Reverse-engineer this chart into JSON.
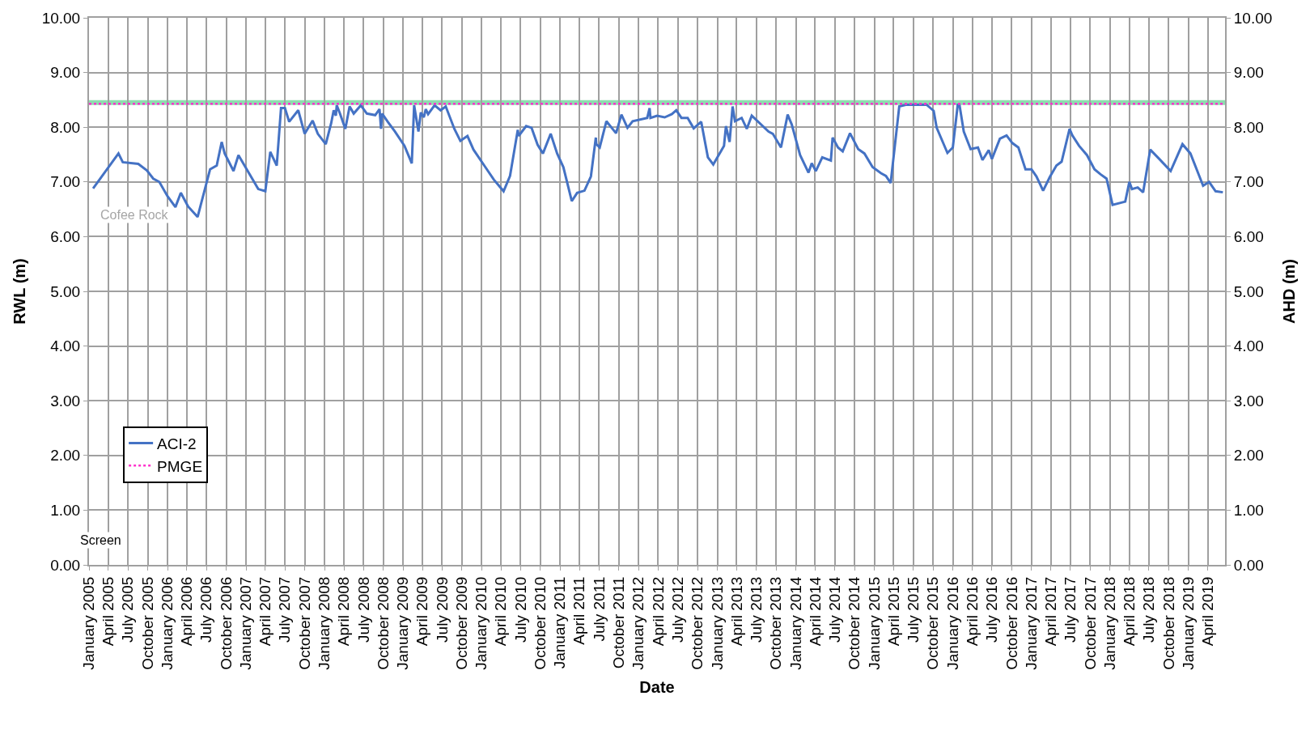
{
  "chart_data": {
    "type": "line",
    "xlabel": "Date",
    "ylabel": "RWL (m)",
    "y2label": "AHD (m)",
    "xlim": [
      "2005-01-01",
      "2019-06-20"
    ],
    "xticks": [
      {
        "value": "2005-01-01",
        "label": "January 2005"
      },
      {
        "value": "2005-04-01",
        "label": "April 2005"
      },
      {
        "value": "2005-07-01",
        "label": "July 2005"
      },
      {
        "value": "2005-10-01",
        "label": "October 2005"
      },
      {
        "value": "2006-01-01",
        "label": "January 2006"
      },
      {
        "value": "2006-04-01",
        "label": "April 2006"
      },
      {
        "value": "2006-07-01",
        "label": "July 2006"
      },
      {
        "value": "2006-10-01",
        "label": "October 2006"
      },
      {
        "value": "2007-01-01",
        "label": "January 2007"
      },
      {
        "value": "2007-04-01",
        "label": "April 2007"
      },
      {
        "value": "2007-07-01",
        "label": "July 2007"
      },
      {
        "value": "2007-10-01",
        "label": "October 2007"
      },
      {
        "value": "2008-01-01",
        "label": "January 2008"
      },
      {
        "value": "2008-04-01",
        "label": "April 2008"
      },
      {
        "value": "2008-07-01",
        "label": "July 2008"
      },
      {
        "value": "2008-10-01",
        "label": "October 2008"
      },
      {
        "value": "2009-01-01",
        "label": "January 2009"
      },
      {
        "value": "2009-04-01",
        "label": "April 2009"
      },
      {
        "value": "2009-07-01",
        "label": "July 2009"
      },
      {
        "value": "2009-10-01",
        "label": "October 2009"
      },
      {
        "value": "2010-01-01",
        "label": "January 2010"
      },
      {
        "value": "2010-04-01",
        "label": "April 2010"
      },
      {
        "value": "2010-07-01",
        "label": "July 2010"
      },
      {
        "value": "2010-10-01",
        "label": "October 2010"
      },
      {
        "value": "2011-01-01",
        "label": "January 2011"
      },
      {
        "value": "2011-04-01",
        "label": "April 2011"
      },
      {
        "value": "2011-07-01",
        "label": "July 2011"
      },
      {
        "value": "2011-10-01",
        "label": "October 2011"
      },
      {
        "value": "2012-01-01",
        "label": "January 2012"
      },
      {
        "value": "2012-04-01",
        "label": "April 2012"
      },
      {
        "value": "2012-07-01",
        "label": "July 2012"
      },
      {
        "value": "2012-10-01",
        "label": "October 2012"
      },
      {
        "value": "2013-01-01",
        "label": "January 2013"
      },
      {
        "value": "2013-04-01",
        "label": "April 2013"
      },
      {
        "value": "2013-07-01",
        "label": "July 2013"
      },
      {
        "value": "2013-10-01",
        "label": "October 2013"
      },
      {
        "value": "2014-01-01",
        "label": "January 2014"
      },
      {
        "value": "2014-04-01",
        "label": "April 2014"
      },
      {
        "value": "2014-07-01",
        "label": "July 2014"
      },
      {
        "value": "2014-10-01",
        "label": "October 2014"
      },
      {
        "value": "2015-01-01",
        "label": "January 2015"
      },
      {
        "value": "2015-04-01",
        "label": "April 2015"
      },
      {
        "value": "2015-07-01",
        "label": "July 2015"
      },
      {
        "value": "2015-10-01",
        "label": "October 2015"
      },
      {
        "value": "2016-01-01",
        "label": "January 2016"
      },
      {
        "value": "2016-04-01",
        "label": "April 2016"
      },
      {
        "value": "2016-07-01",
        "label": "July 2016"
      },
      {
        "value": "2016-10-01",
        "label": "October 2016"
      },
      {
        "value": "2017-01-01",
        "label": "January 2017"
      },
      {
        "value": "2017-04-01",
        "label": "April 2017"
      },
      {
        "value": "2017-07-01",
        "label": "July 2017"
      },
      {
        "value": "2017-10-01",
        "label": "October 2017"
      },
      {
        "value": "2018-01-01",
        "label": "January 2018"
      },
      {
        "value": "2018-04-01",
        "label": "April 2018"
      },
      {
        "value": "2018-07-01",
        "label": "July 2018"
      },
      {
        "value": "2018-10-01",
        "label": "October 2018"
      },
      {
        "value": "2019-01-01",
        "label": "January 2019"
      },
      {
        "value": "2019-04-01",
        "label": "April 2019"
      }
    ],
    "ylim": [
      0,
      10
    ],
    "yticks": [
      {
        "value": 0,
        "label": "0.00"
      },
      {
        "value": 1,
        "label": "1.00"
      },
      {
        "value": 2,
        "label": "2.00"
      },
      {
        "value": 3,
        "label": "3.00"
      },
      {
        "value": 4,
        "label": "4.00"
      },
      {
        "value": 5,
        "label": "5.00"
      },
      {
        "value": 6,
        "label": "6.00"
      },
      {
        "value": 7,
        "label": "7.00"
      },
      {
        "value": 8,
        "label": "8.00"
      },
      {
        "value": 9,
        "label": "9.00"
      },
      {
        "value": 10,
        "label": "10.00"
      }
    ],
    "y2lim": [
      0,
      10
    ],
    "y2ticks": [
      {
        "value": 0,
        "label": "0.00"
      },
      {
        "value": 1,
        "label": "1.00"
      },
      {
        "value": 2,
        "label": "2.00"
      },
      {
        "value": 3,
        "label": "3.00"
      },
      {
        "value": 4,
        "label": "4.00"
      },
      {
        "value": 5,
        "label": "5.00"
      },
      {
        "value": 6,
        "label": "6.00"
      },
      {
        "value": 7,
        "label": "7.00"
      },
      {
        "value": 8,
        "label": "8.00"
      },
      {
        "value": 9,
        "label": "9.00"
      },
      {
        "value": 10,
        "label": "10.00"
      }
    ],
    "grid": true,
    "legend": "bottom left",
    "marker": "none",
    "ref_lines": [
      {
        "axis": "y",
        "value": 8.45,
        "color": "#8fdcb0",
        "line_style": "solid"
      }
    ],
    "annotations": [
      "Cofee Rock",
      "Screen"
    ],
    "series": [
      {
        "name": "ACI-2",
        "color": "#4472c4",
        "line_style": "solid",
        "x": [
          "2005-01-20",
          "2005-05-18",
          "2005-06-07",
          "2005-08-18",
          "2005-09-27",
          "2005-10-27",
          "2005-11-24",
          "2006-01-01",
          "2006-02-07",
          "2006-03-04",
          "2006-04-07",
          "2006-05-21",
          "2006-07-18",
          "2006-08-18",
          "2006-09-10",
          "2006-09-24",
          "2006-11-04",
          "2006-11-27",
          "2007-02-27",
          "2007-04-01",
          "2007-04-24",
          "2007-05-24",
          "2007-06-13",
          "2007-07-01",
          "2007-07-21",
          "2007-09-01",
          "2007-10-01",
          "2007-11-07",
          "2007-12-01",
          "2008-01-07",
          "2008-02-01",
          "2008-02-13",
          "2008-02-23",
          "2008-02-27",
          "2008-03-13",
          "2008-04-07",
          "2008-04-27",
          "2008-05-16",
          "2008-06-18",
          "2008-07-16",
          "2008-08-24",
          "2008-09-13",
          "2008-09-20",
          "2008-09-25",
          "2008-10-21",
          "2008-11-24",
          "2009-01-07",
          "2009-02-10",
          "2009-02-21",
          "2009-03-13",
          "2009-03-24",
          "2009-04-07",
          "2009-04-16",
          "2009-04-27",
          "2009-05-27",
          "2009-06-24",
          "2009-07-18",
          "2009-08-27",
          "2009-09-24",
          "2009-10-27",
          "2009-11-24",
          "2010-01-13",
          "2010-02-27",
          "2010-04-13",
          "2010-05-13",
          "2010-06-18",
          "2010-06-22",
          "2010-07-27",
          "2010-08-21",
          "2010-09-18",
          "2010-10-13",
          "2010-11-18",
          "2010-12-18",
          "2011-01-16",
          "2011-02-24",
          "2011-03-21",
          "2011-04-24",
          "2011-05-24",
          "2011-06-16",
          "2011-06-18",
          "2011-07-04",
          "2011-08-04",
          "2011-09-18",
          "2011-10-13",
          "2011-11-10",
          "2011-12-04",
          "2012-02-10",
          "2012-02-21",
          "2012-02-25",
          "2012-03-27",
          "2012-05-01",
          "2012-06-04",
          "2012-06-24",
          "2012-07-18",
          "2012-08-16",
          "2012-09-13",
          "2012-10-18",
          "2012-11-18",
          "2012-12-13",
          "2013-02-01",
          "2013-02-10",
          "2013-02-27",
          "2013-03-13",
          "2013-03-24",
          "2013-04-24",
          "2013-05-18",
          "2013-06-10",
          "2013-08-27",
          "2013-09-16",
          "2013-10-24",
          "2013-11-24",
          "2013-12-13",
          "2014-01-21",
          "2014-03-01",
          "2014-03-16",
          "2014-04-04",
          "2014-05-04",
          "2014-06-13",
          "2014-06-21",
          "2014-07-16",
          "2014-08-07",
          "2014-09-10",
          "2014-10-18",
          "2014-11-16",
          "2014-12-24",
          "2015-02-01",
          "2015-02-24",
          "2015-03-18",
          "2015-04-27",
          "2015-05-27",
          "2015-09-01",
          "2015-10-04",
          "2015-10-18",
          "2015-12-07",
          "2016-01-01",
          "2016-01-24",
          "2016-02-01",
          "2016-02-21",
          "2016-03-24",
          "2016-04-27",
          "2016-05-18",
          "2016-06-16",
          "2016-07-01",
          "2016-08-07",
          "2016-09-07",
          "2016-10-04",
          "2016-11-01",
          "2016-12-04",
          "2017-01-01",
          "2017-01-24",
          "2017-02-24",
          "2017-03-27",
          "2017-04-27",
          "2017-05-21",
          "2017-06-27",
          "2017-07-10",
          "2017-08-10",
          "2017-09-16",
          "2017-10-21",
          "2017-11-18",
          "2017-12-16",
          "2018-01-13",
          "2018-03-13",
          "2018-04-01",
          "2018-04-13",
          "2018-05-10",
          "2018-06-04",
          "2018-07-07",
          "2018-08-18",
          "2018-10-10",
          "2018-12-04",
          "2019-01-10",
          "2019-02-18",
          "2019-03-10",
          "2019-04-07",
          "2019-05-07",
          "2019-06-10"
        ],
        "values": [
          6.88,
          7.52,
          7.36,
          7.33,
          7.21,
          7.06,
          7.0,
          6.74,
          6.54,
          6.8,
          6.55,
          6.36,
          7.23,
          7.3,
          7.73,
          7.52,
          7.2,
          7.49,
          6.87,
          6.83,
          7.55,
          7.3,
          8.35,
          8.35,
          8.1,
          8.31,
          7.88,
          8.12,
          7.88,
          7.69,
          8.07,
          8.31,
          8.21,
          8.4,
          8.25,
          7.97,
          8.38,
          8.25,
          8.4,
          8.25,
          8.22,
          8.33,
          7.97,
          8.25,
          8.1,
          7.92,
          7.66,
          7.34,
          8.4,
          7.92,
          8.27,
          8.18,
          8.33,
          8.24,
          8.4,
          8.31,
          8.38,
          7.97,
          7.75,
          7.84,
          7.59,
          7.3,
          7.04,
          6.83,
          7.11,
          7.95,
          7.84,
          8.02,
          7.99,
          7.68,
          7.52,
          7.88,
          7.52,
          7.27,
          6.65,
          6.8,
          6.84,
          7.1,
          7.81,
          7.69,
          7.63,
          8.11,
          7.89,
          8.23,
          7.99,
          8.11,
          8.17,
          8.35,
          8.17,
          8.21,
          8.18,
          8.24,
          8.31,
          8.17,
          8.17,
          7.98,
          8.1,
          7.45,
          7.32,
          7.66,
          8.02,
          7.73,
          8.38,
          8.11,
          8.17,
          7.97,
          8.21,
          7.92,
          7.88,
          7.63,
          8.23,
          8.05,
          7.49,
          7.17,
          7.34,
          7.2,
          7.45,
          7.39,
          7.81,
          7.63,
          7.56,
          7.89,
          7.6,
          7.52,
          7.27,
          7.16,
          7.11,
          6.98,
          8.38,
          8.41,
          8.41,
          8.3,
          7.99,
          7.53,
          7.63,
          8.41,
          8.41,
          7.92,
          7.6,
          7.63,
          7.4,
          7.58,
          7.42,
          7.79,
          7.85,
          7.71,
          7.63,
          7.23,
          7.23,
          7.1,
          6.84,
          7.09,
          7.3,
          7.37,
          7.97,
          7.85,
          7.66,
          7.49,
          7.23,
          7.14,
          7.06,
          6.58,
          6.64,
          7.0,
          6.87,
          6.9,
          6.81,
          7.59,
          7.42,
          7.2,
          7.69,
          7.52,
          7.13,
          6.93,
          7.0,
          6.83,
          6.81
        ]
      },
      {
        "name": "PMGE",
        "color": "#ff33cc",
        "line_style": "dotted",
        "x": [
          "2005-01-01",
          "2019-06-20"
        ],
        "values": [
          8.43,
          8.43
        ]
      }
    ]
  }
}
